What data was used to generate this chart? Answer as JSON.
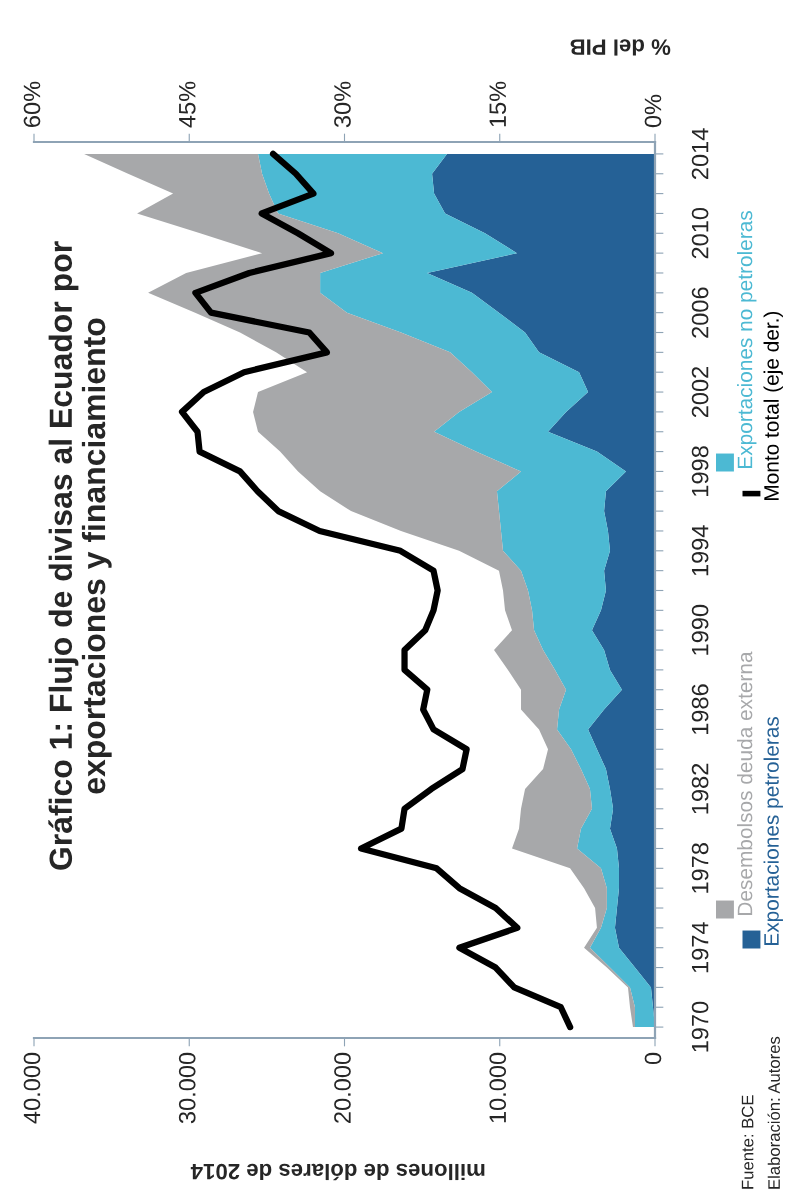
{
  "chart_data": {
    "type": "area",
    "orientation": "horizontal",
    "stacked": true,
    "title": "Gráfico 1: Flujo de divisas al Ecuador por\nexportaciones y financiamiento",
    "xlabel": "millones de dólares de 2014",
    "x2label": "% del PIB",
    "x": [
      1970,
      1971,
      1972,
      1973,
      1974,
      1975,
      1976,
      1977,
      1978,
      1979,
      1980,
      1981,
      1982,
      1983,
      1984,
      1985,
      1986,
      1987,
      1988,
      1989,
      1990,
      1991,
      1992,
      1993,
      1994,
      1995,
      1996,
      1997,
      1998,
      1999,
      2000,
      2001,
      2002,
      2003,
      2004,
      2005,
      2006,
      2007,
      2008,
      2009,
      2010,
      2011,
      2012,
      2013,
      2014
    ],
    "series": [
      {
        "name": "Exportaciones petroleras",
        "color": "#256196",
        "values": [
          0,
          130,
          260,
          1290,
          2320,
          2580,
          2450,
          2320,
          2320,
          2450,
          2900,
          2700,
          2900,
          3160,
          3740,
          4310,
          3280,
          2130,
          2900,
          3280,
          4060,
          3480,
          3160,
          3280,
          2900,
          3030,
          3280,
          3160,
          1870,
          3740,
          6890,
          5730,
          4310,
          4890,
          7470,
          8370,
          10050,
          11790,
          14680,
          8890,
          10950,
          13520,
          14230,
          14360,
          13400
        ]
      },
      {
        "name": "Exportaciones no petroleras",
        "color": "#4cb9d3",
        "values": [
          1290,
          1160,
          1350,
          1610,
          1870,
          900,
          650,
          780,
          1160,
          2570,
          1870,
          1360,
          1290,
          1610,
          1670,
          2000,
          2900,
          3600,
          3540,
          3930,
          3730,
          4440,
          5020,
          5350,
          6890,
          6890,
          6770,
          7020,
          6760,
          7790,
          7340,
          6890,
          6190,
          6900,
          5730,
          7990,
          9790,
          9780,
          6890,
          8630,
          9460,
          10760,
          10630,
          10950,
          12170
        ]
      },
      {
        "name": "Desembolsos deuda externa",
        "color": "#a7a8aa",
        "values": [
          130,
          320,
          130,
          200,
          380,
          260,
          760,
          1470,
          1990,
          4190,
          3990,
          4570,
          4180,
          2440,
          1480,
          1160,
          2450,
          2900,
          3030,
          3160,
          1420,
          1740,
          1610,
          1420,
          2830,
          6440,
          9530,
          11390,
          14360,
          12620,
          11340,
          13270,
          15070,
          10620,
          11210,
          10370,
          9780,
          11080,
          8630,
          7790,
          8890,
          9080,
          6180,
          8630,
          11200
        ]
      },
      {
        "name": "Monto total (eje der.)",
        "type": "line",
        "axis": "x2",
        "color": "#000000",
        "values": [
          8.2,
          9.1,
          13.6,
          15.4,
          18.9,
          13.3,
          15.4,
          18.9,
          21.1,
          28.4,
          24.5,
          24.2,
          21.6,
          18.6,
          18.2,
          21.4,
          22.4,
          22.0,
          24.2,
          24.2,
          22.2,
          21.4,
          21.0,
          21.4,
          24.6,
          32.4,
          36.4,
          38.4,
          40.1,
          44.0,
          44.2,
          45.7,
          43.6,
          39.7,
          31.7,
          33.4,
          42.9,
          44.4,
          39.2,
          31.3,
          34.5,
          38.0,
          33.0,
          34.7,
          36.9
        ]
      }
    ],
    "xlim": [
      40000,
      0
    ],
    "xticks": [
      {
        "value": 40000,
        "label": "40.000"
      },
      {
        "value": 30000,
        "label": "30.000"
      },
      {
        "value": 20000,
        "label": "20.000"
      },
      {
        "value": 10000,
        "label": "10.000"
      },
      0
    ],
    "x2lim": [
      60,
      0
    ],
    "x2ticks": [
      {
        "value": 60,
        "label": "60%"
      },
      {
        "value": 45,
        "label": "45%"
      },
      {
        "value": 30,
        "label": "30%"
      },
      {
        "value": 15,
        "label": "15%"
      },
      {
        "value": 0,
        "label": "0%"
      }
    ],
    "ylim": [
      1969.45,
      2014.6
    ],
    "yticks": [
      1970,
      {
        "value": 1971,
        "label": null
      },
      {
        "value": 1972,
        "label": null
      },
      {
        "value": 1973,
        "label": null
      },
      1974,
      {
        "value": 1975,
        "label": null
      },
      {
        "value": 1976,
        "label": null
      },
      {
        "value": 1977,
        "label": null
      },
      1978,
      {
        "value": 1979,
        "label": null
      },
      {
        "value": 1980,
        "label": null
      },
      {
        "value": 1981,
        "label": null
      },
      1982,
      {
        "value": 1983,
        "label": null
      },
      {
        "value": 1984,
        "label": null
      },
      {
        "value": 1985,
        "label": null
      },
      1986,
      {
        "value": 1987,
        "label": null
      },
      {
        "value": 1988,
        "label": null
      },
      {
        "value": 1989,
        "label": null
      },
      1990,
      {
        "value": 1991,
        "label": null
      },
      {
        "value": 1992,
        "label": null
      },
      {
        "value": 1993,
        "label": null
      },
      1994,
      {
        "value": 1995,
        "label": null
      },
      {
        "value": 1996,
        "label": null
      },
      {
        "value": 1997,
        "label": null
      },
      1998,
      {
        "value": 1999,
        "label": null
      },
      {
        "value": 2000,
        "label": null
      },
      {
        "value": 2001,
        "label": null
      },
      2002,
      {
        "value": 2003,
        "label": null
      },
      {
        "value": 2004,
        "label": null
      },
      {
        "value": 2005,
        "label": null
      },
      2006,
      {
        "value": 2007,
        "label": null
      },
      {
        "value": 2008,
        "label": null
      },
      {
        "value": 2009,
        "label": null
      },
      2010,
      {
        "value": 2011,
        "label": null
      },
      {
        "value": 2012,
        "label": null
      },
      {
        "value": 2013,
        "label": null
      },
      2014
    ],
    "legend": "right",
    "annotations": [
      "Fuente: BCE",
      "Elaboración: Autores"
    ]
  }
}
